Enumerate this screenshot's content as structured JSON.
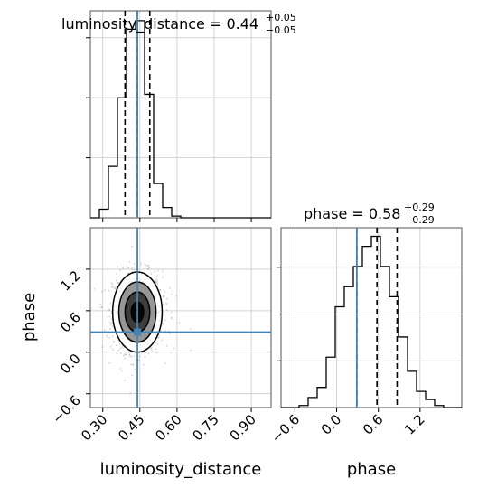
{
  "chart_data": {
    "type": "corner",
    "parameters": [
      "luminosity_distance",
      "phase"
    ],
    "truths": {
      "luminosity_distance": 0.44,
      "phase": 0.29
    },
    "titles": {
      "luminosity_distance": {
        "main": "luminosity_distance = 0.44",
        "plus": "+0.05",
        "minus": "−0.05"
      },
      "phase": {
        "main": "phase = 0.58",
        "plus": "+0.29",
        "minus": "−0.29"
      }
    },
    "axis_labels": {
      "x_bottom_left": "luminosity_distance",
      "x_bottom_right": "phase",
      "y_left": "phase"
    },
    "ranges": {
      "luminosity_distance": [
        0.25,
        0.98
      ],
      "phase": [
        -0.8,
        1.8
      ]
    },
    "ticks": {
      "luminosity_distance": [
        {
          "value": 0.3,
          "label": "0.30"
        },
        {
          "value": 0.45,
          "label": "0.45"
        },
        {
          "value": 0.6,
          "label": "0.60"
        },
        {
          "value": 0.75,
          "label": "0.75"
        },
        {
          "value": 0.9,
          "label": "0.90"
        }
      ],
      "phase": [
        {
          "value": -0.6,
          "label": "−0.6"
        },
        {
          "value": 0.0,
          "label": "0.0"
        },
        {
          "value": 0.6,
          "label": "0.6"
        },
        {
          "value": 1.2,
          "label": "1.2"
        }
      ]
    },
    "hist_luminosity_distance": {
      "edges": [
        0.25,
        0.2865,
        0.323,
        0.3595,
        0.396,
        0.4325,
        0.469,
        0.5055,
        0.542,
        0.5785,
        0.615,
        0.6515,
        0.688,
        0.7245,
        0.761,
        0.7975,
        0.834,
        0.8705,
        0.907,
        0.9435,
        0.98
      ],
      "counts": [
        0,
        0.5,
        3.0,
        7.0,
        11.0,
        11.5,
        7.2,
        2.0,
        0.6,
        0.1,
        0,
        0,
        0,
        0,
        0,
        0,
        0,
        0,
        0,
        0
      ],
      "quantiles": [
        0.39,
        0.44,
        0.49
      ]
    },
    "hist_phase": {
      "edges": [
        -0.8,
        -0.67,
        -0.54,
        -0.41,
        -0.28,
        -0.15,
        -0.02,
        0.11,
        0.24,
        0.37,
        0.5,
        0.63,
        0.76,
        0.89,
        1.02,
        1.15,
        1.28,
        1.41,
        1.54,
        1.67,
        1.8
      ],
      "counts": [
        0,
        0,
        0.1,
        0.5,
        1.0,
        2.5,
        5.0,
        6.0,
        7.0,
        8.0,
        8.5,
        7.0,
        5.5,
        3.5,
        1.8,
        0.8,
        0.4,
        0.1,
        0,
        0
      ],
      "quantiles": [
        0.29,
        0.58,
        0.87
      ]
    },
    "scatter_2d": {
      "center": [
        0.44,
        0.58
      ],
      "sigma": [
        0.05,
        0.29
      ],
      "n_points": 1200
    },
    "contour_levels_sigma": [
      0.5,
      1.0,
      1.5,
      2.0
    ],
    "contour_fills": [
      "#ffffff",
      "#8c8c8c",
      "#333333",
      "#000000"
    ],
    "colors": {
      "truth": "#4682b4",
      "hist": "#000000",
      "grid": "#c8c8c8",
      "points": "#888888"
    }
  }
}
